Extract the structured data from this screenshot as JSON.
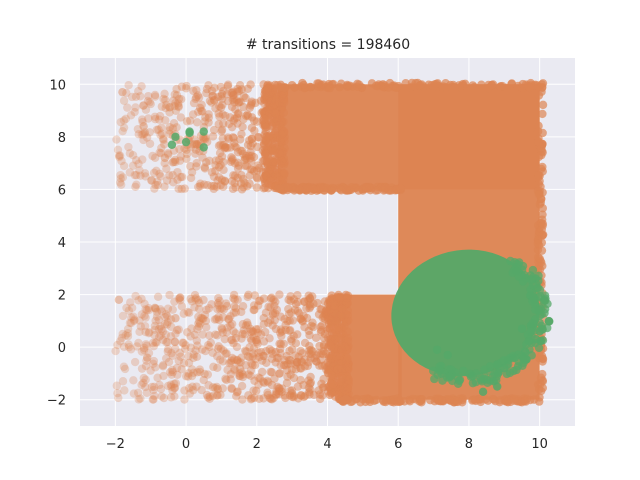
{
  "chart_data": {
    "type": "scatter",
    "title": "# transitions = 198460",
    "xlabel": "",
    "ylabel": "",
    "xlim": [
      -3,
      11
    ],
    "ylim": [
      -3,
      11
    ],
    "xticks": [
      -2,
      0,
      2,
      4,
      6,
      8,
      10
    ],
    "yticks": [
      -2,
      0,
      2,
      4,
      6,
      8,
      10
    ],
    "xtick_labels": [
      "−2",
      "0",
      "2",
      "4",
      "6",
      "8",
      "10"
    ],
    "ytick_labels": [
      "−2",
      "0",
      "2",
      "4",
      "6",
      "8",
      "10"
    ],
    "grid": true,
    "legend": "none",
    "style": {
      "plot_background": "#eaeaf2",
      "grid_color": "#ffffff",
      "series_colors": [
        "#dd8452",
        "#55a868"
      ]
    },
    "series": [
      {
        "marker": "o",
        "alpha": 0.3,
        "regions": [
          {
            "shape": "rect",
            "x": [
              -2,
              10
            ],
            "y": [
              6,
              10
            ],
            "density": "sparse at x<2, dense at x>2"
          },
          {
            "shape": "rect",
            "x": [
              -2,
              6
            ],
            "y": [
              -2,
              2
            ],
            "density": "sparse at x<4, dense at x>4"
          },
          {
            "shape": "rect",
            "x": [
              6,
              10
            ],
            "y": [
              -2,
              10
            ],
            "density": "dense"
          }
        ],
        "sample_points": [
          {
            "x": -1.8,
            "y": 9.7
          },
          {
            "x": -1.2,
            "y": 8.4
          },
          {
            "x": -0.6,
            "y": 7.2
          },
          {
            "x": 0.4,
            "y": 9.1
          },
          {
            "x": 1.1,
            "y": 6.3
          },
          {
            "x": 1.7,
            "y": 8.8
          },
          {
            "x": -1.9,
            "y": 1.8
          },
          {
            "x": -1.1,
            "y": -0.4
          },
          {
            "x": -0.3,
            "y": 1.1
          },
          {
            "x": 0.9,
            "y": -1.6
          },
          {
            "x": 1.6,
            "y": 0.5
          },
          {
            "x": 2.5,
            "y": -1.2
          }
        ]
      },
      {
        "marker": "o",
        "alpha": 0.8,
        "regions": [
          {
            "shape": "ellipse",
            "cx": 7.9,
            "cy": 1.3,
            "rx": 2.1,
            "ry": 2.4
          }
        ],
        "points": [
          {
            "x": -0.4,
            "y": 7.7
          },
          {
            "x": -0.3,
            "y": 8.0
          },
          {
            "x": 0.1,
            "y": 8.2
          },
          {
            "x": 0.1,
            "y": 8.15
          },
          {
            "x": 0.5,
            "y": 8.2
          },
          {
            "x": 0.0,
            "y": 7.8
          },
          {
            "x": 0.5,
            "y": 7.6
          },
          {
            "x": 8.4,
            "y": -1.7
          },
          {
            "x": 8.7,
            "y": -1.3
          },
          {
            "x": 9.0,
            "y": -0.8
          },
          {
            "x": 9.3,
            "y": -0.4
          },
          {
            "x": 9.6,
            "y": -0.2
          },
          {
            "x": 9.9,
            "y": 0.3
          },
          {
            "x": 10.0,
            "y": 0.6
          },
          {
            "x": 9.5,
            "y": 0.7
          },
          {
            "x": 9.1,
            "y": -0.5
          },
          {
            "x": 8.8,
            "y": -1.5
          },
          {
            "x": 7.4,
            "y": -0.3
          },
          {
            "x": 7.1,
            "y": -0.1
          },
          {
            "x": 9.8,
            "y": 0.9
          },
          {
            "x": 8.1,
            "y": -1.1
          }
        ]
      }
    ]
  }
}
